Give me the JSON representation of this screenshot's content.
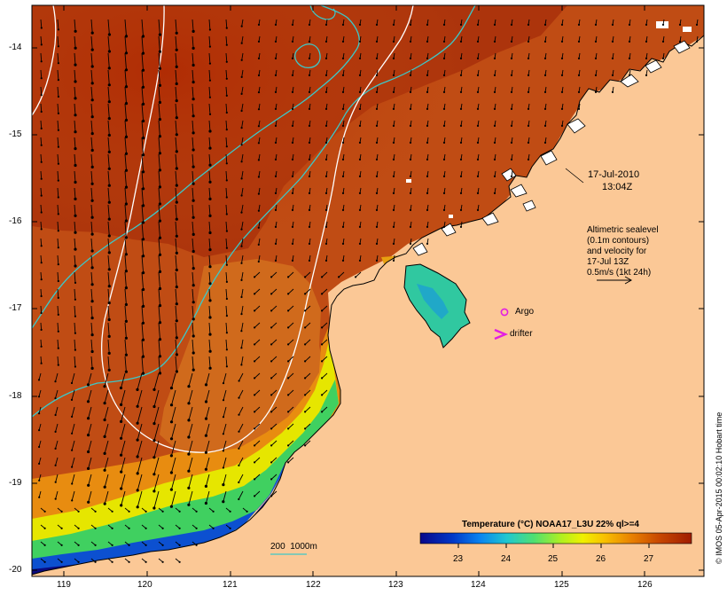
{
  "map": {
    "title": "Temperature (°C) NOAA17_L3U 22% ql>=4",
    "timestamp": {
      "date": "17-Jul-2010",
      "time": "13:04Z"
    },
    "altimetry_note": [
      "Altimetric sealevel",
      "(0.1m contours)",
      "and velocity for",
      "17-Jul 13Z",
      "0.5m/s (1kt 24h)"
    ],
    "legend": {
      "argo": "Argo",
      "drifter": "drifter",
      "isobaths": "200  1000m"
    },
    "credit": "© IMOS 05-Apr-2015 00:02:10 Hobart time",
    "x_ticks": [
      "119",
      "120",
      "121",
      "122",
      "123",
      "124",
      "125",
      "126"
    ],
    "y_ticks": [
      "-14",
      "-15",
      "-16",
      "-17",
      "-18",
      "-19",
      "-20"
    ],
    "colorbar_ticks": [
      "23",
      "24",
      "25",
      "26",
      "27"
    ],
    "colors": {
      "land": "#fbc896",
      "isobath": "#3cc8c8",
      "contour": "#ffffff",
      "marker": "#e21ee2",
      "sst_scale": [
        "#0a0a80",
        "#0050d8",
        "#10a8e8",
        "#30d0a0",
        "#80e040",
        "#e8f000",
        "#f0b000",
        "#e07000",
        "#c04008",
        "#a02000"
      ]
    }
  }
}
